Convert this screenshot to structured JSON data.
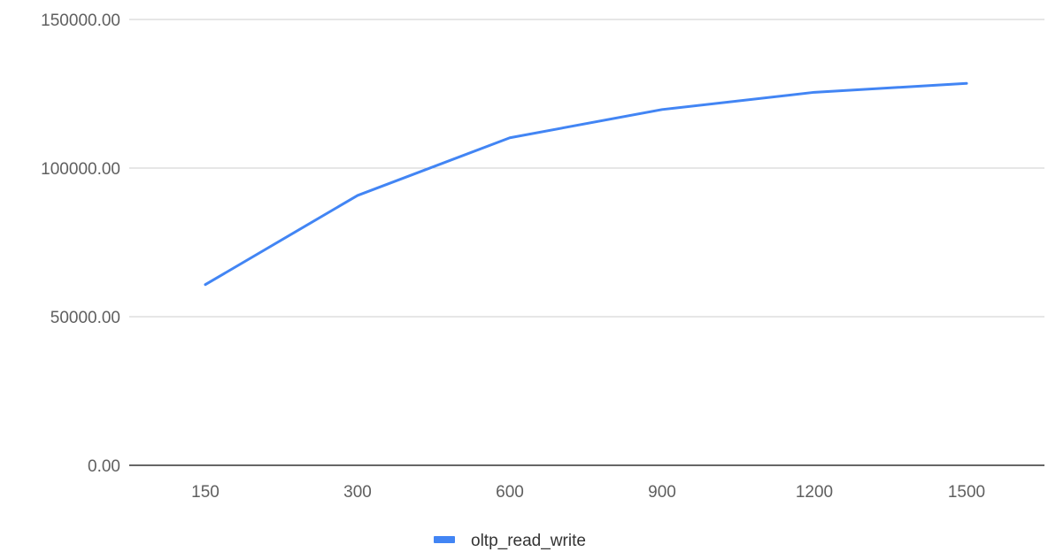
{
  "chart_data": {
    "type": "line",
    "title": "",
    "xlabel": "",
    "ylabel": "",
    "categories": [
      "150",
      "300",
      "600",
      "900",
      "1200",
      "1500"
    ],
    "series": [
      {
        "name": "oltp_read_write",
        "color": "#4285f4",
        "values": [
          60800,
          90800,
          110200,
          119700,
          125500,
          128500
        ]
      }
    ],
    "ylim": [
      0,
      150000
    ],
    "yticks": [
      0,
      50000,
      100000,
      150000
    ],
    "ytick_labels": [
      "0.00",
      "50000.00",
      "100000.00",
      "150000.00"
    ],
    "grid": true,
    "legend_position": "bottom"
  }
}
